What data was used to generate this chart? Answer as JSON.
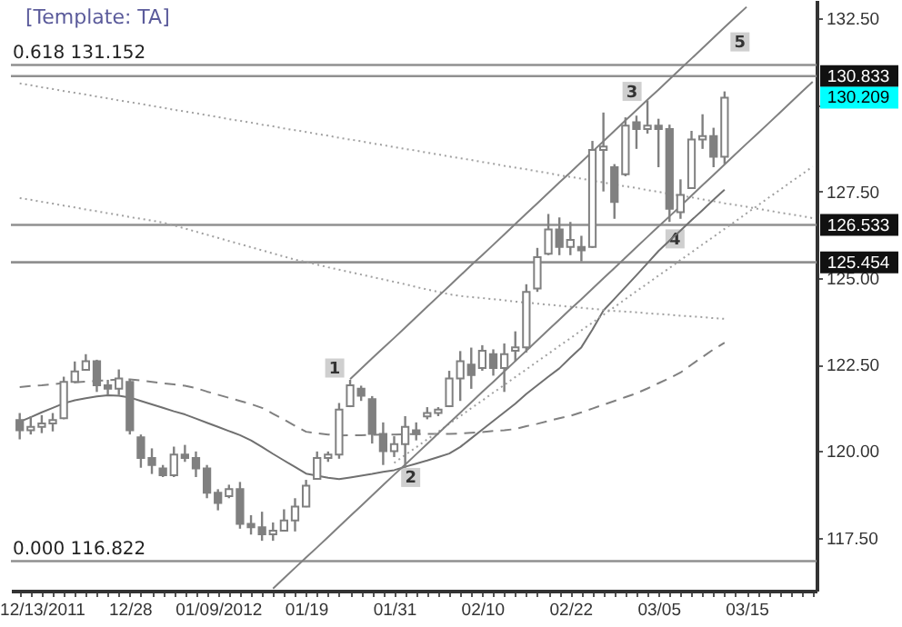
{
  "chart_data": {
    "type": "candlestick",
    "title": "[Template: TA]",
    "color": "#808080",
    "categories": [
      null,
      null,
      "12/13/2011",
      null,
      null,
      null,
      null,
      null,
      null,
      null,
      "12/28",
      null,
      null,
      null,
      null,
      null,
      null,
      null,
      "01/09/2012",
      null,
      null,
      null,
      null,
      null,
      null,
      null,
      "01/19",
      null,
      null,
      null,
      null,
      null,
      null,
      null,
      "01/31",
      null,
      null,
      null,
      null,
      null,
      null,
      null,
      "02/10",
      null,
      null,
      null,
      null,
      null,
      null,
      null,
      "02/22",
      null,
      null,
      null,
      null,
      null,
      null,
      null,
      "03/05",
      null,
      null,
      null,
      null,
      null,
      null,
      null,
      "03/15",
      null,
      null,
      null,
      null,
      null,
      null
    ],
    "ohlc": [
      [
        120.9,
        121.1,
        120.34,
        120.6
      ],
      [
        120.6,
        121.01,
        120.48,
        120.7
      ],
      [
        120.7,
        121.04,
        120.52,
        120.8
      ],
      [
        120.8,
        121.1,
        120.57,
        120.9
      ],
      [
        120.95,
        122.15,
        120.92,
        122.0
      ],
      [
        122.0,
        122.59,
        121.97,
        122.3
      ],
      [
        122.35,
        122.8,
        122.32,
        122.6
      ],
      [
        122.6,
        122.64,
        121.71,
        121.9
      ],
      [
        121.9,
        122.06,
        121.62,
        121.8
      ],
      [
        121.8,
        122.36,
        121.62,
        122.1
      ],
      [
        122.0,
        122.06,
        120.48,
        120.6
      ],
      [
        120.4,
        120.48,
        119.52,
        119.8
      ],
      [
        119.8,
        120.08,
        119.34,
        119.6
      ],
      [
        119.5,
        119.6,
        119.25,
        119.3
      ],
      [
        119.3,
        120.13,
        119.25,
        119.9
      ],
      [
        119.9,
        120.18,
        119.69,
        119.8
      ],
      [
        119.8,
        119.99,
        119.25,
        119.5
      ],
      [
        119.5,
        119.6,
        118.64,
        118.8
      ],
      [
        118.8,
        118.9,
        118.29,
        118.5
      ],
      [
        118.7,
        119.03,
        118.64,
        118.9
      ],
      [
        118.9,
        119.11,
        117.76,
        117.9
      ],
      [
        117.9,
        118.15,
        117.59,
        117.8
      ],
      [
        117.8,
        118.25,
        117.41,
        117.6
      ],
      [
        117.6,
        117.94,
        117.41,
        117.7
      ],
      [
        117.7,
        118.32,
        117.68,
        118.0
      ],
      [
        118.0,
        118.64,
        117.68,
        118.4
      ],
      [
        118.4,
        119.17,
        118.38,
        119.0
      ],
      [
        119.2,
        119.99,
        119.17,
        119.8
      ],
      [
        119.8,
        119.99,
        119.69,
        119.9
      ],
      [
        119.9,
        121.39,
        119.78,
        121.2
      ],
      [
        121.3,
        122.06,
        121.27,
        121.9
      ],
      [
        121.8,
        121.89,
        121.45,
        121.6
      ],
      [
        121.5,
        121.59,
        120.22,
        120.5
      ],
      [
        120.5,
        120.83,
        119.6,
        120.0
      ],
      [
        120.0,
        120.43,
        119.83,
        120.2
      ],
      [
        120.2,
        121.01,
        119.52,
        120.7
      ],
      [
        120.6,
        120.83,
        120.31,
        120.5
      ],
      [
        121.0,
        121.27,
        120.92,
        121.1
      ],
      [
        121.1,
        121.27,
        121.01,
        121.2
      ],
      [
        121.3,
        122.32,
        121.27,
        122.1
      ],
      [
        122.1,
        122.89,
        121.45,
        122.6
      ],
      [
        122.5,
        122.99,
        121.8,
        122.2
      ],
      [
        122.4,
        123.06,
        122.32,
        122.9
      ],
      [
        122.8,
        122.94,
        122.18,
        122.4
      ],
      [
        122.4,
        123.11,
        121.71,
        122.8
      ],
      [
        122.9,
        123.46,
        122.59,
        123.0
      ],
      [
        123.0,
        124.82,
        122.85,
        124.6
      ],
      [
        124.7,
        125.87,
        124.6,
        125.6
      ],
      [
        125.7,
        126.85,
        125.66,
        126.4
      ],
      [
        126.4,
        126.75,
        125.66,
        125.9
      ],
      [
        125.9,
        126.62,
        125.66,
        126.1
      ],
      [
        125.9,
        126.22,
        125.48,
        125.8
      ],
      [
        125.9,
        128.96,
        125.87,
        128.7
      ],
      [
        128.7,
        129.78,
        127.5,
        128.8
      ],
      [
        128.2,
        128.29,
        126.71,
        127.2
      ],
      [
        128.0,
        129.64,
        127.94,
        129.4
      ],
      [
        129.5,
        129.69,
        128.73,
        129.3
      ],
      [
        129.3,
        130.13,
        129.17,
        129.4
      ],
      [
        129.4,
        129.6,
        128.2,
        129.3
      ],
      [
        129.3,
        129.43,
        126.62,
        127.0
      ],
      [
        126.9,
        127.85,
        126.71,
        127.4
      ],
      [
        127.6,
        129.25,
        127.59,
        129.0
      ],
      [
        129.0,
        129.73,
        128.73,
        129.1
      ],
      [
        129.1,
        129.34,
        128.2,
        128.5
      ],
      [
        128.5,
        130.39,
        128.29,
        130.209
      ],
      null,
      null,
      null,
      null,
      null,
      null,
      null,
      null
    ],
    "series": [
      {
        "type": "line",
        "line_style": "solid",
        "color": "#707070",
        "values": [
          120.85,
          120.98,
          121.12,
          121.25,
          121.38,
          121.47,
          121.53,
          121.58,
          121.61,
          121.6,
          121.55,
          121.45,
          121.35,
          121.25,
          121.15,
          121.06,
          120.94,
          120.82,
          120.7,
          120.58,
          120.46,
          120.31,
          120.12,
          119.92,
          119.73,
          119.54,
          119.35,
          119.29,
          119.23,
          119.19,
          119.24,
          119.29,
          119.34,
          119.4,
          119.45,
          119.55,
          119.64,
          119.73,
          119.83,
          119.93,
          120.12,
          120.37,
          120.62,
          120.87,
          121.12,
          121.37,
          121.65,
          121.9,
          122.15,
          122.39,
          122.7,
          123.0,
          123.51,
          124.06,
          124.4,
          124.74,
          125.08,
          125.43,
          125.78,
          126.08,
          126.37,
          126.67,
          126.96,
          127.26,
          127.55,
          null,
          null,
          null,
          null,
          null,
          null,
          null,
          null
        ]
      },
      {
        "type": "line",
        "line_style": "dashed",
        "color": "#808080",
        "values": [
          121.85,
          121.88,
          121.9,
          121.93,
          121.97,
          121.99,
          122.01,
          122.03,
          122.05,
          122.07,
          122.07,
          122.04,
          122.0,
          121.96,
          121.93,
          121.89,
          121.82,
          121.72,
          121.63,
          121.54,
          121.45,
          121.36,
          121.25,
          121.08,
          120.91,
          120.73,
          120.56,
          120.52,
          120.48,
          120.45,
          120.46,
          120.46,
          120.47,
          120.48,
          120.48,
          120.49,
          120.49,
          120.5,
          120.5,
          120.5,
          120.51,
          120.53,
          120.55,
          120.58,
          120.6,
          120.64,
          120.72,
          120.79,
          120.87,
          120.95,
          121.02,
          121.12,
          121.23,
          121.34,
          121.45,
          121.56,
          121.67,
          121.81,
          121.96,
          122.11,
          122.27,
          122.5,
          122.72,
          122.94,
          123.13,
          null,
          null,
          null,
          null,
          null,
          null,
          null,
          null
        ]
      },
      {
        "type": "line",
        "line_style": "dotted",
        "color": "#a0a0a0",
        "values": [
          127.31,
          127.26,
          127.2,
          127.15,
          127.09,
          127.04,
          126.98,
          126.93,
          126.87,
          126.82,
          126.76,
          126.71,
          126.66,
          126.6,
          126.52,
          126.43,
          126.34,
          126.25,
          126.16,
          126.07,
          125.98,
          125.89,
          125.8,
          125.71,
          125.62,
          125.53,
          125.46,
          125.39,
          125.31,
          125.24,
          125.17,
          125.1,
          125.03,
          124.96,
          124.89,
          124.82,
          124.74,
          124.67,
          124.6,
          124.53,
          124.48,
          124.45,
          124.42,
          124.39,
          124.36,
          124.32,
          124.29,
          124.26,
          124.23,
          124.2,
          124.17,
          124.14,
          124.11,
          124.08,
          124.05,
          124.03,
          124.01,
          123.98,
          123.96,
          123.94,
          123.91,
          123.89,
          123.87,
          123.84,
          123.82,
          null,
          null,
          null,
          null,
          null,
          null,
          null,
          null
        ]
      },
      {
        "type": "line",
        "line_style": "dotted",
        "color": "#a0a0a0",
        "values": [
          130.62,
          130.57,
          130.51,
          130.46,
          130.4,
          130.35,
          130.3,
          130.24,
          130.19,
          130.13,
          130.08,
          130.03,
          129.97,
          129.92,
          129.86,
          129.81,
          129.76,
          129.7,
          129.65,
          129.59,
          129.54,
          129.49,
          129.43,
          129.38,
          129.32,
          129.27,
          129.22,
          129.16,
          129.11,
          129.05,
          129.0,
          128.95,
          128.89,
          128.84,
          128.78,
          128.73,
          128.68,
          128.62,
          128.57,
          128.51,
          128.46,
          128.41,
          128.35,
          128.3,
          128.24,
          128.19,
          128.14,
          128.08,
          128.03,
          127.97,
          127.92,
          127.87,
          127.81,
          127.76,
          127.7,
          127.65,
          127.6,
          127.54,
          127.49,
          127.43,
          127.38,
          127.33,
          127.27,
          127.22,
          127.16,
          127.11,
          127.06,
          127.0,
          126.95,
          126.89,
          126.84,
          126.79,
          126.73
        ]
      },
      {
        "type": "line",
        "line_style": "dotted",
        "color": "#a0a0a0",
        "values": [
          null,
          null,
          null,
          null,
          null,
          null,
          null,
          null,
          null,
          null,
          null,
          null,
          null,
          null,
          null,
          null,
          null,
          null,
          null,
          null,
          null,
          null,
          null,
          null,
          null,
          null,
          null,
          null,
          null,
          null,
          null,
          null,
          null,
          null,
          119.66,
          119.89,
          120.11,
          120.34,
          120.56,
          120.79,
          121.01,
          121.24,
          121.46,
          121.69,
          121.91,
          122.14,
          122.36,
          122.59,
          122.81,
          123.04,
          123.26,
          123.49,
          123.71,
          123.94,
          124.16,
          124.39,
          124.62,
          124.84,
          125.07,
          125.29,
          125.52,
          125.74,
          125.97,
          126.19,
          126.42,
          126.64,
          126.87,
          127.09,
          127.32,
          127.54,
          127.77,
          127.99,
          128.22
        ]
      },
      {
        "type": "line",
        "line_style": "solid",
        "color": "#808080",
        "values": [
          null,
          null,
          null,
          null,
          null,
          null,
          null,
          null,
          null,
          null,
          null,
          null,
          null,
          null,
          null,
          null,
          null,
          null,
          null,
          null,
          null,
          null,
          null,
          116.03,
          116.33,
          116.63,
          116.93,
          117.22,
          117.52,
          117.82,
          118.12,
          118.42,
          118.72,
          119.02,
          119.32,
          119.61,
          119.91,
          120.21,
          120.51,
          120.81,
          121.11,
          121.41,
          121.71,
          122.0,
          122.3,
          122.6,
          122.9,
          123.2,
          123.5,
          123.8,
          124.1,
          124.39,
          124.69,
          124.99,
          125.29,
          125.59,
          125.89,
          126.19,
          126.49,
          126.78,
          127.08,
          127.38,
          127.68,
          127.98,
          128.28,
          128.58,
          128.88,
          129.17,
          129.47,
          129.77,
          130.07,
          130.37,
          130.67
        ]
      },
      {
        "type": "line",
        "line_style": "solid",
        "color": "#808080",
        "values": [
          null,
          null,
          null,
          null,
          null,
          null,
          null,
          null,
          null,
          null,
          null,
          null,
          null,
          null,
          null,
          null,
          null,
          null,
          null,
          null,
          null,
          null,
          null,
          null,
          null,
          null,
          null,
          null,
          null,
          null,
          122.08,
          122.38,
          122.68,
          122.98,
          123.27,
          123.57,
          123.87,
          124.17,
          124.47,
          124.77,
          125.07,
          125.37,
          125.66,
          125.96,
          126.26,
          126.56,
          126.86,
          127.16,
          127.46,
          127.76,
          128.05,
          128.35,
          128.65,
          128.95,
          129.25,
          129.55,
          129.85,
          130.15,
          130.44,
          130.74,
          131.04,
          131.34,
          131.64,
          131.94,
          132.24,
          132.54,
          132.83,
          null,
          null,
          null,
          null,
          null,
          null
        ]
      }
    ],
    "ylim": [
      115.97,
      133.03
    ],
    "yticks": [
      {
        "value": 117.5,
        "label": "117.50"
      },
      {
        "value": 120,
        "label": "120.00"
      },
      {
        "value": 122.5,
        "label": "122.50"
      },
      {
        "value": 125,
        "label": "125.00"
      },
      {
        "value": 127.5,
        "label": "127.50"
      },
      {
        "value": 130,
        "label": null
      },
      {
        "value": 132.5,
        "label": "132.50"
      }
    ],
    "ref_lines": [
      {
        "axis": "y",
        "value": 131.152,
        "label": "0.618 131.152",
        "color": "#909090"
      },
      {
        "axis": "y",
        "value": 130.833,
        "label": "130.833",
        "color": "#909090"
      },
      {
        "axis": "y",
        "value": 126.533,
        "label": "126.533",
        "color": "#909090"
      },
      {
        "axis": "y",
        "value": 125.454,
        "label": "125.454",
        "color": "#909090"
      },
      {
        "axis": "y",
        "value": 116.822,
        "label": "0.000 116.822",
        "color": "#909090"
      }
    ],
    "annotations": [
      {
        "text": "1",
        "y": 122.4
      },
      {
        "text": "2",
        "y": 119.24
      },
      {
        "text": "3",
        "y": 130.39
      },
      {
        "text": "4",
        "y": 126.13
      },
      {
        "text": "5",
        "y": 131.82
      },
      "130.209"
    ],
    "grid": false
  }
}
